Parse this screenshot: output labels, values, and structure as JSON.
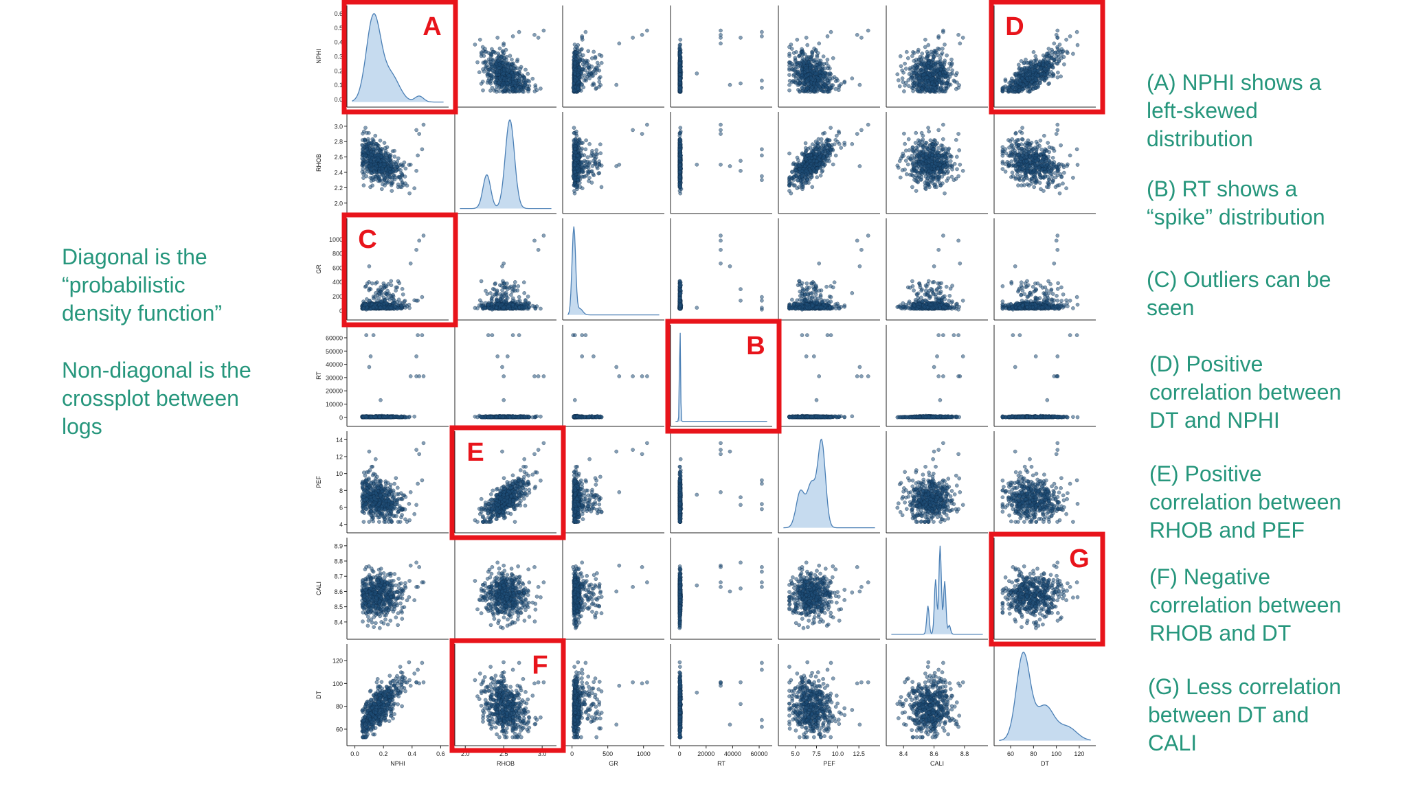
{
  "left_notes": {
    "diagonal": [
      "Diagonal is the",
      "“probabilistic",
      "density function”"
    ],
    "offdiagonal": [
      "Non-diagonal is the",
      "crossplot between",
      "logs"
    ]
  },
  "right_notes": [
    {
      "id": "A",
      "lines": [
        "(A) NPHI shows a",
        "left-skewed",
        "distribution"
      ]
    },
    {
      "id": "B",
      "lines": [
        "(B) RT shows a",
        "“spike” distribution"
      ]
    },
    {
      "id": "C",
      "lines": [
        "(C) Outliers can be",
        "seen"
      ]
    },
    {
      "id": "D",
      "lines": [
        "(D) Positive",
        "correlation between",
        "DT and NPHI"
      ]
    },
    {
      "id": "E",
      "lines": [
        "(E) Positive",
        "correlation between",
        "RHOB and PEF"
      ]
    },
    {
      "id": "F",
      "lines": [
        "(F) Negative",
        "correlation between",
        "RHOB and DT"
      ]
    },
    {
      "id": "G",
      "lines": [
        "(G) Less correlation",
        "between DT and",
        "CALI"
      ]
    }
  ],
  "colors": {
    "points": "#1f4e79",
    "kde_fill": "#c6dbef",
    "kde_line": "#4a7fb5",
    "highlight": "#e8141b",
    "note_text": "#26967c"
  },
  "chart_data": {
    "type": "scatter",
    "variables": [
      "NPHI",
      "RHOB",
      "GR",
      "RT",
      "PEF",
      "CALI",
      "DT"
    ],
    "axis_ranges": {
      "NPHI": [
        -0.02,
        0.62
      ],
      "RHOB": [
        1.93,
        3.12
      ],
      "GR": [
        -60,
        1220
      ],
      "RT": [
        -3000,
        66000
      ],
      "PEF": [
        3.6,
        14.4
      ],
      "CALI": [
        8.32,
        8.92
      ],
      "DT": [
        50,
        130
      ]
    },
    "x_ticks": {
      "NPHI": [
        0.0,
        0.2,
        0.4,
        0.6
      ],
      "RHOB": [
        2.0,
        2.5,
        3.0
      ],
      "GR": [
        0,
        500,
        1000
      ],
      "RT": [
        0,
        20000,
        40000,
        60000
      ],
      "PEF": [
        5.0,
        7.5,
        10.0,
        12.5
      ],
      "CALI": [
        8.4,
        8.6,
        8.8
      ],
      "DT": [
        60,
        80,
        100,
        120
      ]
    },
    "x_tick_labels": {
      "NPHI": [
        "0.0",
        "0.2",
        "0.4",
        "0.6"
      ],
      "RHOB": [
        "2.0",
        "2.5",
        "3.0"
      ],
      "GR": [
        "0",
        "500",
        "1000"
      ],
      "RT": [
        "0",
        "20000",
        "40000",
        "60000"
      ],
      "PEF": [
        "5.0",
        "7.5",
        "10.0",
        "12.5"
      ],
      "CALI": [
        "8.4",
        "8.6",
        "8.8"
      ],
      "DT": [
        "60",
        "80",
        "100",
        "120"
      ]
    },
    "y_ticks": {
      "NPHI": [
        0.0,
        0.1,
        0.2,
        0.3,
        0.4,
        0.5,
        0.6
      ],
      "RHOB": [
        2.0,
        2.2,
        2.4,
        2.6,
        2.8,
        3.0
      ],
      "GR": [
        0,
        200,
        400,
        600,
        800,
        1000
      ],
      "RT": [
        0,
        10000,
        20000,
        30000,
        40000,
        50000,
        60000
      ],
      "PEF": [
        4,
        6,
        8,
        10,
        12,
        14
      ],
      "CALI": [
        8.4,
        8.5,
        8.6,
        8.7,
        8.8,
        8.9
      ],
      "DT": [
        60,
        80,
        100,
        120
      ]
    },
    "y_tick_labels": {
      "NPHI": [
        "0.0",
        "0.1",
        "0.2",
        "0.3",
        "0.4",
        "0.5",
        "0.6"
      ],
      "RHOB": [
        "2.0",
        "2.2",
        "2.4",
        "2.6",
        "2.8",
        "3.0"
      ],
      "GR": [
        "0",
        "200",
        "400",
        "600",
        "800",
        "1000"
      ],
      "RT": [
        "0",
        "10000",
        "20000",
        "30000",
        "40000",
        "50000",
        "60000"
      ],
      "PEF": [
        "4",
        "6",
        "8",
        "10",
        "12",
        "14"
      ],
      "CALI": [
        "8.4",
        "8.5",
        "8.6",
        "8.7",
        "8.8",
        "8.9"
      ],
      "DT": [
        "60",
        "80",
        "100",
        "120"
      ]
    },
    "diagonal": "kde",
    "kde_peaks": {
      "NPHI": [
        [
          0.13,
          1.0,
          0.05
        ],
        [
          0.25,
          0.32,
          0.06
        ],
        [
          0.45,
          0.07,
          0.03
        ]
      ],
      "RHOB": [
        [
          2.28,
          0.38,
          0.05
        ],
        [
          2.58,
          1.0,
          0.06
        ]
      ],
      "GR": [
        [
          25,
          1.0,
          25
        ],
        [
          110,
          0.07,
          40
        ]
      ],
      "RT": [
        [
          300,
          1.0,
          400
        ]
      ],
      "PEF": [
        [
          5.6,
          0.42,
          0.5
        ],
        [
          6.9,
          0.5,
          0.5
        ],
        [
          8.1,
          1.0,
          0.45
        ]
      ],
      "CALI": [
        [
          8.56,
          0.32,
          0.008
        ],
        [
          8.61,
          0.62,
          0.008
        ],
        [
          8.64,
          1.0,
          0.008
        ],
        [
          8.67,
          0.6,
          0.008
        ],
        [
          8.7,
          0.1,
          0.008
        ]
      ],
      "DT": [
        [
          71,
          1.0,
          6
        ],
        [
          90,
          0.4,
          8
        ],
        [
          110,
          0.15,
          8
        ]
      ]
    },
    "scatter_samples": 520,
    "rt_outliers": [
      {
        "NPHI": 0.08,
        "RHOB": 2.35,
        "GR": 15,
        "RT": 62000,
        "PEF": 5.8,
        "CALI": 8.76,
        "DT": 62
      },
      {
        "NPHI": 0.13,
        "RHOB": 2.3,
        "GR": 40,
        "RT": 62000,
        "PEF": 6.4,
        "CALI": 8.73,
        "DT": 68
      },
      {
        "NPHI": 0.44,
        "RHOB": 2.62,
        "GR": 140,
        "RT": 62000,
        "PEF": 8.8,
        "CALI": 8.63,
        "DT": 112
      },
      {
        "NPHI": 0.47,
        "RHOB": 2.7,
        "GR": 190,
        "RT": 62000,
        "PEF": 9.2,
        "CALI": 8.66,
        "DT": 118
      },
      {
        "NPHI": 0.11,
        "RHOB": 2.55,
        "GR": 300,
        "RT": 46000,
        "PEF": 7.2,
        "CALI": 8.62,
        "DT": 82
      },
      {
        "NPHI": 0.43,
        "RHOB": 2.42,
        "GR": 140,
        "RT": 46000,
        "PEF": 6.3,
        "CALI": 8.79,
        "DT": 101
      },
      {
        "NPHI": 0.1,
        "RHOB": 2.48,
        "GR": 620,
        "RT": 38000,
        "PEF": 12.6,
        "CALI": 8.6,
        "DT": 64
      },
      {
        "NPHI": 0.39,
        "RHOB": 2.5,
        "GR": 660,
        "RT": 31000,
        "PEF": 7.8,
        "CALI": 8.77,
        "DT": 98
      },
      {
        "NPHI": 0.45,
        "RHOB": 2.9,
        "GR": 980,
        "RT": 31000,
        "PEF": 12.3,
        "CALI": 8.76,
        "DT": 100
      },
      {
        "NPHI": 0.48,
        "RHOB": 3.02,
        "GR": 1050,
        "RT": 31000,
        "PEF": 13.6,
        "CALI": 8.66,
        "DT": 101
      },
      {
        "NPHI": 0.43,
        "RHOB": 2.95,
        "GR": 850,
        "RT": 31000,
        "PEF": 12.8,
        "CALI": 8.63,
        "DT": 101
      },
      {
        "NPHI": 0.18,
        "RHOB": 2.5,
        "GR": 40,
        "RT": 13000,
        "PEF": 7.5,
        "CALI": 8.64,
        "DT": 92
      }
    ],
    "highlight_boxes": [
      {
        "label": "A",
        "row": "NPHI",
        "col": "NPHI"
      },
      {
        "label": "D",
        "row": "NPHI",
        "col": "DT"
      },
      {
        "label": "C",
        "row": "GR",
        "col": "NPHI"
      },
      {
        "label": "B",
        "row": "RT",
        "col": "RT"
      },
      {
        "label": "E",
        "row": "PEF",
        "col": "RHOB"
      },
      {
        "label": "G",
        "row": "CALI",
        "col": "DT"
      },
      {
        "label": "F",
        "row": "DT",
        "col": "RHOB"
      }
    ]
  }
}
